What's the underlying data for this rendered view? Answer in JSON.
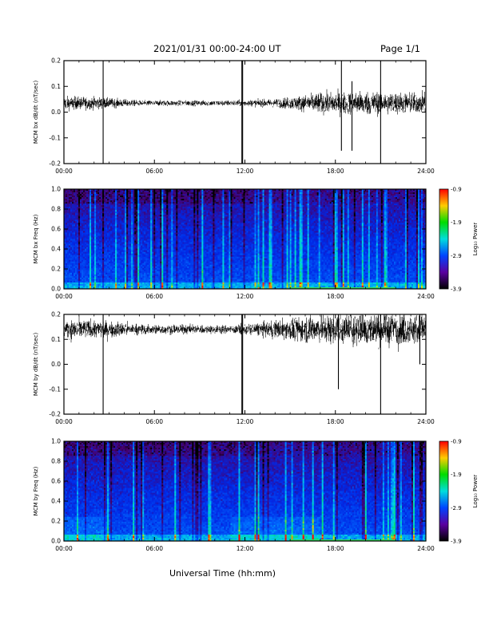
{
  "page": {
    "title": "2021/01/31  00:00-24:00 UT",
    "page_label": "Page 1/1",
    "x_axis_title": "Universal Time (hh:mm)"
  },
  "colorbar": {
    "label": "Log₁₀ Power",
    "ticks": [
      "-0.9",
      "-1.9",
      "-2.9",
      "-3.9"
    ],
    "colors": [
      "#ff0000",
      "#ffcc00",
      "#00dd00",
      "#00dddd",
      "#0044ff",
      "#5a00a0",
      "#000000"
    ]
  },
  "chart_data": [
    {
      "type": "line",
      "title": "",
      "ylabel": "MCM bx dB/dt (nT/sec)",
      "xlabel": "",
      "x_ticks": [
        "00:00",
        "06:00",
        "12:00",
        "18:00",
        "24:00"
      ],
      "y_ticks": [
        "0.2",
        "0.1",
        "0.0",
        "-0.1",
        "-0.2"
      ],
      "ylim": [
        -0.2,
        0.2
      ],
      "x_range_hours": [
        0,
        24
      ],
      "baseline": 0.035,
      "noise_profile_hours": [
        [
          0,
          0.02
        ],
        [
          2,
          0.018
        ],
        [
          5,
          0.008
        ],
        [
          11,
          0.008
        ],
        [
          14,
          0.012
        ],
        [
          17,
          0.03
        ],
        [
          20,
          0.035
        ],
        [
          24,
          0.03
        ]
      ],
      "spikes": [
        {
          "t": 2.6,
          "min": -0.2,
          "max": 0.2
        },
        {
          "t": 11.8,
          "min": -0.2,
          "max": 0.2
        },
        {
          "t": 11.85,
          "min": -0.2,
          "max": 0.2
        },
        {
          "t": 18.4,
          "min": -0.15,
          "max": 0.2
        },
        {
          "t": 19.1,
          "min": -0.15,
          "max": 0.12
        },
        {
          "t": 21.0,
          "min": -0.2,
          "max": 0.2
        }
      ]
    },
    {
      "type": "heatmap",
      "title": "",
      "ylabel": "MCM bx Freq (Hz)",
      "xlabel": "",
      "x_ticks": [
        "00:00",
        "06:00",
        "12:00",
        "18:00",
        "24:00"
      ],
      "y_ticks": [
        "1.0",
        "0.8",
        "0.6",
        "0.4",
        "0.2",
        "0.0"
      ],
      "ylim": [
        0,
        1
      ],
      "zlim": [
        -3.9,
        -0.9
      ],
      "colorbar_label": "Log₁₀ Power"
    },
    {
      "type": "line",
      "title": "",
      "ylabel": "MCM by dB/dt (nT/sec)",
      "xlabel": "",
      "x_ticks": [
        "00:00",
        "06:00",
        "12:00",
        "18:00",
        "24:00"
      ],
      "y_ticks": [
        "0.2",
        "0.1",
        "0.0",
        "-0.1",
        "-0.2"
      ],
      "ylim": [
        -0.2,
        0.2
      ],
      "x_range_hours": [
        0,
        24
      ],
      "baseline": 0.14,
      "noise_profile_hours": [
        [
          0,
          0.03
        ],
        [
          3,
          0.025
        ],
        [
          5,
          0.015
        ],
        [
          11,
          0.012
        ],
        [
          13,
          0.02
        ],
        [
          16,
          0.04
        ],
        [
          20,
          0.05
        ],
        [
          24,
          0.045
        ]
      ],
      "spikes": [
        {
          "t": 2.6,
          "min": -0.2,
          "max": 0.2
        },
        {
          "t": 11.8,
          "min": -0.2,
          "max": 0.2
        },
        {
          "t": 11.85,
          "min": -0.2,
          "max": 0.2
        },
        {
          "t": 18.2,
          "min": -0.1,
          "max": 0.2
        },
        {
          "t": 21.0,
          "min": -0.2,
          "max": 0.2
        },
        {
          "t": 23.6,
          "min": 0.0,
          "max": 0.2
        }
      ]
    },
    {
      "type": "heatmap",
      "title": "",
      "ylabel": "MCM by Freq (Hz)",
      "xlabel": "",
      "x_ticks": [
        "00:00",
        "06:00",
        "12:00",
        "18:00",
        "24:00"
      ],
      "y_ticks": [
        "1.0",
        "0.8",
        "0.6",
        "0.4",
        "0.2",
        "0.0"
      ],
      "ylim": [
        0,
        1
      ],
      "zlim": [
        -3.9,
        -0.9
      ],
      "colorbar_label": "Log₁₀ Power"
    }
  ]
}
